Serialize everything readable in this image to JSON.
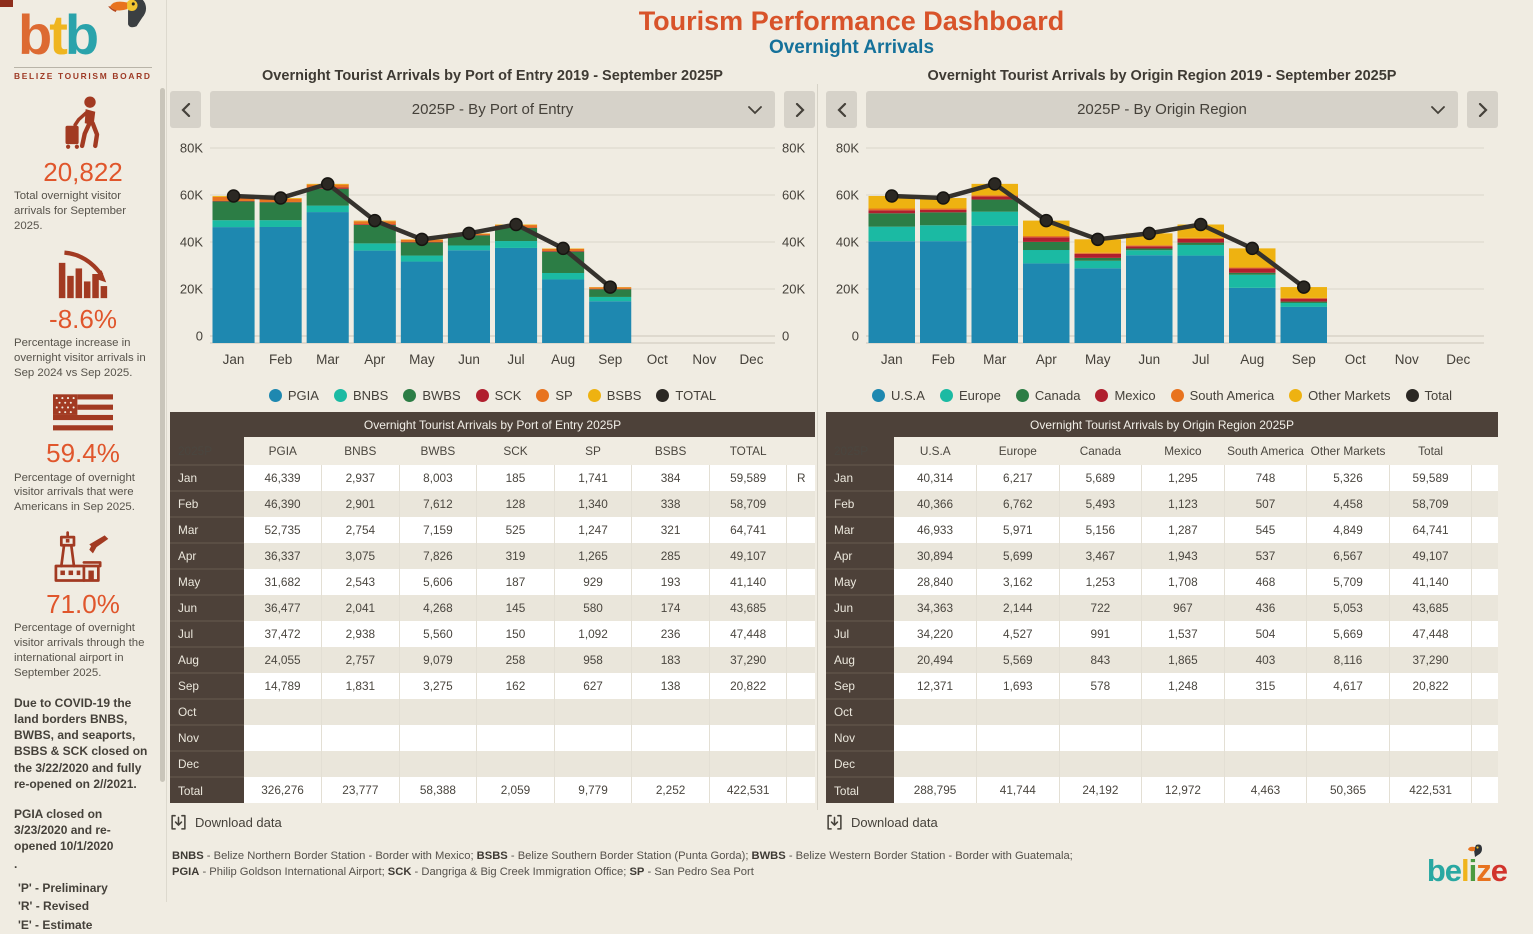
{
  "header": {
    "title": "Tourism Performance Dashboard",
    "subtitle": "Overnight Arrivals"
  },
  "logo": {
    "letters": [
      {
        "ch": "b",
        "color": "#dd6a32"
      },
      {
        "ch": "t",
        "color": "#efb51f"
      },
      {
        "ch": "b",
        "color": "#2aa3ab"
      }
    ],
    "board_label": "BELIZE TOURISM BOARD"
  },
  "sidebar": {
    "stats": [
      {
        "icon": "traveler-icon",
        "value": "20,822",
        "description": "Total overnight visitor arrivals for September 2025."
      },
      {
        "icon": "declining-bar-chart-icon",
        "value": "-8.6%",
        "description": "Percentage increase in overnight visitor arrivals in Sep 2024 vs Sep 2025."
      },
      {
        "icon": "us-flag-icon",
        "value": "59.4%",
        "description": "Percentage of overnight visitor arrivals that were Americans in Sep 2025."
      },
      {
        "icon": "airport-icon",
        "value": "71.0%",
        "description": "Percentage of overnight visitor arrivals through the international airport in September 2025."
      }
    ],
    "notes": [
      "Due to COVID-19 the land borders BNBS, BWBS, and seaports, BSBS & SCK closed on the 3/22/2020 and fully re-opened on 2//2021.",
      "PGIA closed on 3/23/2020 and re-opened 10/1/2020",
      "."
    ],
    "flag_definitions": [
      "'P' - Preliminary",
      "'R' - Revised",
      "'E' - Estimate"
    ]
  },
  "panels": [
    {
      "title": "Overnight Tourist Arrivals by Port of Entry 2019 - September 2025P",
      "dropdown_value": "2025P - By Port of Entry",
      "download_label": "Download data",
      "table": {
        "title": "Overnight Tourist Arrivals by Port of Entry 2025P",
        "corner_label": "2025P",
        "columns": [
          "PGIA",
          "BNBS",
          "BWBS",
          "SCK",
          "SP",
          "BSBS",
          "TOTAL"
        ],
        "rows": [
          {
            "label": "Jan",
            "values": [
              "46,339",
              "2,937",
              "8,003",
              "185",
              "1,741",
              "384",
              "59,589"
            ],
            "flag": "R"
          },
          {
            "label": "Feb",
            "values": [
              "46,390",
              "2,901",
              "7,612",
              "128",
              "1,340",
              "338",
              "58,709"
            ],
            "flag": ""
          },
          {
            "label": "Mar",
            "values": [
              "52,735",
              "2,754",
              "7,159",
              "525",
              "1,247",
              "321",
              "64,741"
            ],
            "flag": ""
          },
          {
            "label": "Apr",
            "values": [
              "36,337",
              "3,075",
              "7,826",
              "319",
              "1,265",
              "285",
              "49,107"
            ],
            "flag": ""
          },
          {
            "label": "May",
            "values": [
              "31,682",
              "2,543",
              "5,606",
              "187",
              "929",
              "193",
              "41,140"
            ],
            "flag": ""
          },
          {
            "label": "Jun",
            "values": [
              "36,477",
              "2,041",
              "4,268",
              "145",
              "580",
              "174",
              "43,685"
            ],
            "flag": ""
          },
          {
            "label": "Jul",
            "values": [
              "37,472",
              "2,938",
              "5,560",
              "150",
              "1,092",
              "236",
              "47,448"
            ],
            "flag": ""
          },
          {
            "label": "Aug",
            "values": [
              "24,055",
              "2,757",
              "9,079",
              "258",
              "958",
              "183",
              "37,290"
            ],
            "flag": ""
          },
          {
            "label": "Sep",
            "values": [
              "14,789",
              "1,831",
              "3,275",
              "162",
              "627",
              "138",
              "20,822"
            ],
            "flag": ""
          },
          {
            "label": "Oct",
            "values": [
              "",
              "",
              "",
              "",
              "",
              "",
              ""
            ],
            "flag": ""
          },
          {
            "label": "Nov",
            "values": [
              "",
              "",
              "",
              "",
              "",
              "",
              ""
            ],
            "flag": ""
          },
          {
            "label": "Dec",
            "values": [
              "",
              "",
              "",
              "",
              "",
              "",
              ""
            ],
            "flag": ""
          },
          {
            "label": "Total",
            "values": [
              "326,276",
              "23,777",
              "58,388",
              "2,059",
              "9,779",
              "2,252",
              "422,531"
            ],
            "flag": ""
          }
        ]
      }
    },
    {
      "title": "Overnight Tourist Arrivals by Origin Region 2019 - September 2025P",
      "dropdown_value": "2025P - By Origin Region",
      "download_label": "Download data",
      "table": {
        "title": "Overnight Tourist Arrivals by Origin Region 2025P",
        "corner_label": "2025P",
        "columns": [
          "U.S.A",
          "Europe",
          "Canada",
          "Mexico",
          "South America",
          "Other Markets",
          "Total"
        ],
        "rows": [
          {
            "label": "Jan",
            "values": [
              "40,314",
              "6,217",
              "5,689",
              "1,295",
              "748",
              "5,326",
              "59,589"
            ],
            "flag": ""
          },
          {
            "label": "Feb",
            "values": [
              "40,366",
              "6,762",
              "5,493",
              "1,123",
              "507",
              "4,458",
              "58,709"
            ],
            "flag": ""
          },
          {
            "label": "Mar",
            "values": [
              "46,933",
              "5,971",
              "5,156",
              "1,287",
              "545",
              "4,849",
              "64,741"
            ],
            "flag": ""
          },
          {
            "label": "Apr",
            "values": [
              "30,894",
              "5,699",
              "3,467",
              "1,943",
              "537",
              "6,567",
              "49,107"
            ],
            "flag": ""
          },
          {
            "label": "May",
            "values": [
              "28,840",
              "3,162",
              "1,253",
              "1,708",
              "468",
              "5,709",
              "41,140"
            ],
            "flag": ""
          },
          {
            "label": "Jun",
            "values": [
              "34,363",
              "2,144",
              "722",
              "967",
              "436",
              "5,053",
              "43,685"
            ],
            "flag": ""
          },
          {
            "label": "Jul",
            "values": [
              "34,220",
              "4,527",
              "991",
              "1,537",
              "504",
              "5,669",
              "47,448"
            ],
            "flag": ""
          },
          {
            "label": "Aug",
            "values": [
              "20,494",
              "5,569",
              "843",
              "1,865",
              "403",
              "8,116",
              "37,290"
            ],
            "flag": ""
          },
          {
            "label": "Sep",
            "values": [
              "12,371",
              "1,693",
              "578",
              "1,248",
              "315",
              "4,617",
              "20,822"
            ],
            "flag": ""
          },
          {
            "label": "Oct",
            "values": [
              "",
              "",
              "",
              "",
              "",
              "",
              ""
            ],
            "flag": ""
          },
          {
            "label": "Nov",
            "values": [
              "",
              "",
              "",
              "",
              "",
              "",
              ""
            ],
            "flag": ""
          },
          {
            "label": "Dec",
            "values": [
              "",
              "",
              "",
              "",
              "",
              "",
              ""
            ],
            "flag": ""
          },
          {
            "label": "Total",
            "values": [
              "288,795",
              "41,744",
              "24,192",
              "12,972",
              "4,463",
              "50,365",
              "422,531"
            ],
            "flag": ""
          }
        ]
      }
    }
  ],
  "chart_data": [
    {
      "type": "bar",
      "stacked": true,
      "title": "Overnight Tourist Arrivals by Port of Entry 2019 - September 2025P",
      "categories": [
        "Jan",
        "Feb",
        "Mar",
        "Apr",
        "May",
        "Jun",
        "Jul",
        "Aug",
        "Sep",
        "Oct",
        "Nov",
        "Dec"
      ],
      "series": [
        {
          "name": "PGIA",
          "color": "#1e88b0",
          "values": [
            46339,
            46390,
            52735,
            36337,
            31682,
            36477,
            37472,
            24055,
            14789,
            null,
            null,
            null
          ]
        },
        {
          "name": "BNBS",
          "color": "#1bbaa3",
          "values": [
            2937,
            2901,
            2754,
            3075,
            2543,
            2041,
            2938,
            2757,
            1831,
            null,
            null,
            null
          ]
        },
        {
          "name": "BWBS",
          "color": "#2c7d45",
          "values": [
            8003,
            7612,
            7159,
            7826,
            5606,
            4268,
            5560,
            9079,
            3275,
            null,
            null,
            null
          ]
        },
        {
          "name": "SCK",
          "color": "#b01f2e",
          "values": [
            185,
            128,
            525,
            319,
            187,
            145,
            150,
            258,
            162,
            null,
            null,
            null
          ]
        },
        {
          "name": "SP",
          "color": "#e8731f",
          "values": [
            1741,
            1340,
            1247,
            1265,
            929,
            580,
            1092,
            958,
            627,
            null,
            null,
            null
          ]
        },
        {
          "name": "BSBS",
          "color": "#eeb211",
          "values": [
            384,
            338,
            321,
            285,
            193,
            174,
            236,
            183,
            138,
            null,
            null,
            null
          ]
        }
      ],
      "line": {
        "name": "TOTAL",
        "color": "#35322d",
        "values": [
          59589,
          58709,
          64741,
          49107,
          41140,
          43685,
          47448,
          37290,
          20822,
          null,
          null,
          null
        ]
      },
      "ylim": [
        0,
        80000
      ],
      "ytick_labels": [
        "0",
        "20K",
        "40K",
        "60K",
        "80K"
      ],
      "right_axis_labels": true,
      "grid": true,
      "legend_position": "bottom"
    },
    {
      "type": "bar",
      "stacked": true,
      "title": "Overnight Tourist Arrivals by Origin Region 2019 - September 2025P",
      "categories": [
        "Jan",
        "Feb",
        "Mar",
        "Apr",
        "May",
        "Jun",
        "Jul",
        "Aug",
        "Sep",
        "Oct",
        "Nov",
        "Dec"
      ],
      "series": [
        {
          "name": "U.S.A",
          "color": "#1e88b0",
          "values": [
            40314,
            40366,
            46933,
            30894,
            28840,
            34363,
            34220,
            20494,
            12371,
            null,
            null,
            null
          ]
        },
        {
          "name": "Europe",
          "color": "#1bbaa3",
          "values": [
            6217,
            6762,
            5971,
            5699,
            3162,
            2144,
            4527,
            5569,
            1693,
            null,
            null,
            null
          ]
        },
        {
          "name": "Canada",
          "color": "#2c7d45",
          "values": [
            5689,
            5493,
            5156,
            3467,
            1253,
            722,
            991,
            843,
            578,
            null,
            null,
            null
          ]
        },
        {
          "name": "Mexico",
          "color": "#b01f2e",
          "values": [
            1295,
            1123,
            1287,
            1943,
            1708,
            967,
            1537,
            1865,
            1248,
            null,
            null,
            null
          ]
        },
        {
          "name": "South America",
          "color": "#e8731f",
          "values": [
            748,
            507,
            545,
            537,
            468,
            436,
            504,
            403,
            315,
            null,
            null,
            null
          ]
        },
        {
          "name": "Other Markets",
          "color": "#eeb211",
          "values": [
            5326,
            4458,
            4849,
            6567,
            5709,
            5053,
            5669,
            8116,
            4617,
            null,
            null,
            null
          ]
        }
      ],
      "line": {
        "name": "Total",
        "color": "#35322d",
        "values": [
          59589,
          58709,
          64741,
          49107,
          41140,
          43685,
          47448,
          37290,
          20822,
          null,
          null,
          null
        ]
      },
      "ylim": [
        0,
        80000
      ],
      "ytick_labels": [
        "0",
        "20K",
        "40K",
        "60K",
        "80K"
      ],
      "right_axis_labels": false,
      "grid": true,
      "legend_position": "bottom"
    }
  ],
  "footer": {
    "lines": [
      [
        {
          "text": "BNBS",
          "bold": true
        },
        {
          "text": " - Belize Northern Border Station - Border with Mexico; ",
          "bold": false
        },
        {
          "text": "BSBS",
          "bold": true
        },
        {
          "text": " - Belize Southern Border Station (Punta Gorda); ",
          "bold": false
        },
        {
          "text": "BWBS",
          "bold": true
        },
        {
          "text": " - Belize Western Border Station - Border with Guatemala;",
          "bold": false
        }
      ],
      [
        {
          "text": "PGIA",
          "bold": true
        },
        {
          "text": " - Philip Goldson International Airport; ",
          "bold": false
        },
        {
          "text": "SCK",
          "bold": true
        },
        {
          "text": " - Dangriga & Big Creek Immigration Office; ",
          "bold": false
        },
        {
          "text": "SP",
          "bold": true
        },
        {
          "text": " - San Pedro Sea Port",
          "bold": false
        }
      ]
    ]
  },
  "belize_logo": {
    "letters": [
      {
        "ch": "b",
        "color": "#29a8a2"
      },
      {
        "ch": "e",
        "color": "#29a8a2"
      },
      {
        "ch": "l",
        "color": "#f0b41c"
      },
      {
        "ch": "i",
        "color": "#4a9b3f"
      },
      {
        "ch": "z",
        "color": "#e8731f"
      },
      {
        "ch": "e",
        "color": "#d1342c"
      }
    ]
  },
  "colors": {
    "background": "#f0ece2",
    "title": "#d8532a",
    "subtitle": "#15719a",
    "stat_value": "#e0562c",
    "icon_red": "#a23a22",
    "table_band": "#4d4139"
  }
}
